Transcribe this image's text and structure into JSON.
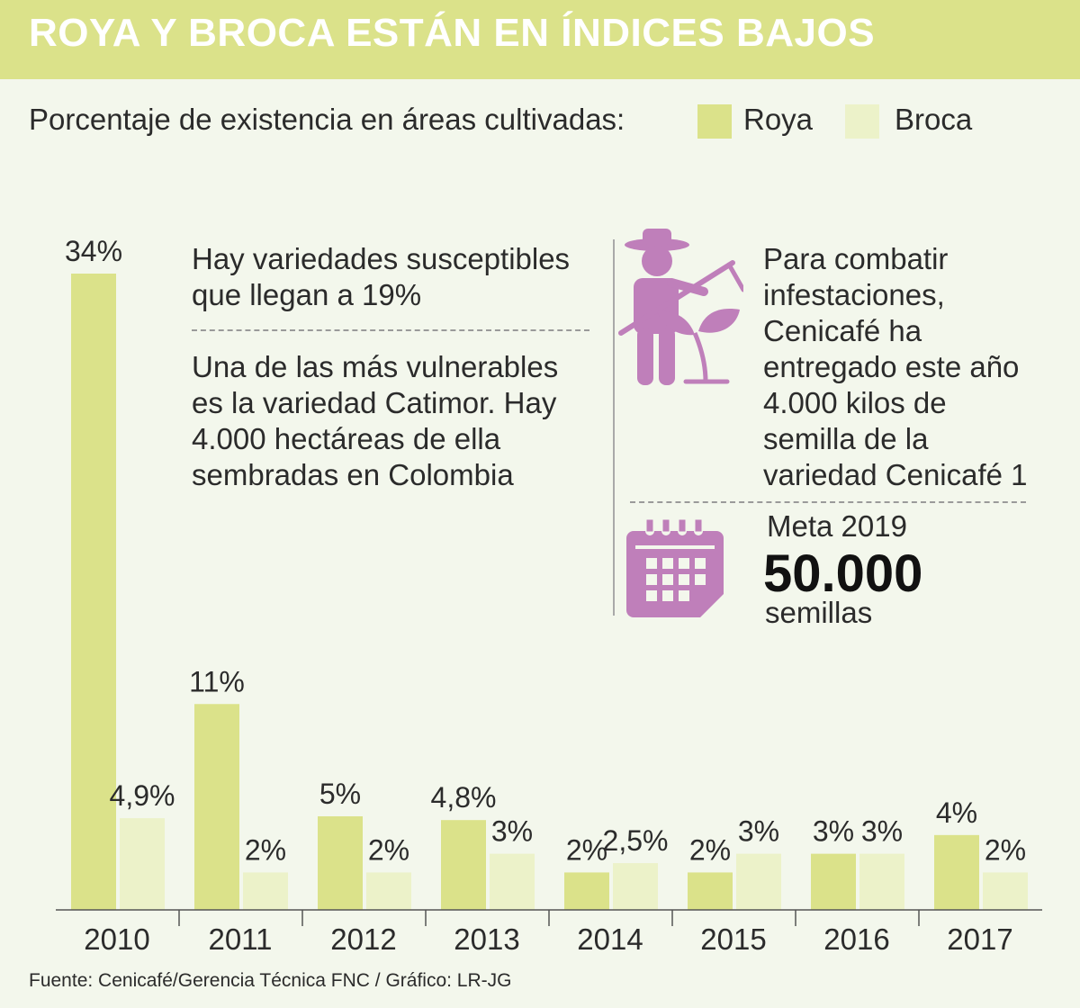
{
  "title": "ROYA Y BROCA ESTÁN EN ÍNDICES BAJOS",
  "subtitle": "Porcentaje de existencia en áreas cultivadas:",
  "colors": {
    "header": "#dbe28a",
    "roya": "#dbe28a",
    "broca": "#ecf2c9",
    "icon": "#bf7fba",
    "background": "#f3f7ec"
  },
  "notes": {
    "left_top": [
      "Hay variedades susceptibles",
      "que llegan a 19%"
    ],
    "left_bottom": [
      "Una de las más vulnerables",
      "es la variedad Catimor. Hay",
      "4.000 hectáreas de ella",
      "sembradas en Colombia"
    ],
    "right_top": [
      "Para combatir",
      "infestaciones,",
      "Cenicafé ha",
      "entregado este año",
      "4.000 kilos de",
      "semilla de la",
      "variedad Cenicafé 1"
    ]
  },
  "meta": {
    "label": "Meta 2019",
    "value": "50.000",
    "unit": "semillas"
  },
  "icons": [
    "farmer-icon",
    "calendar-icon"
  ],
  "source": "Fuente: Cenicafé/Gerencia Técnica FNC / Gráfico: LR-JG",
  "chart_data": {
    "type": "bar",
    "categories": [
      "2010",
      "2011",
      "2012",
      "2013",
      "2014",
      "2015",
      "2016",
      "2017"
    ],
    "series": [
      {
        "name": "Roya",
        "values": [
          34,
          11,
          5,
          4.8,
          2,
          2,
          3,
          4
        ],
        "labels": [
          "34%",
          "11%",
          "5%",
          "4,8%",
          "2%",
          "2%",
          "3%",
          "4%"
        ]
      },
      {
        "name": "Broca",
        "values": [
          4.9,
          2,
          2,
          3,
          2.5,
          3,
          3,
          2
        ],
        "labels": [
          "4,9%",
          "2%",
          "2%",
          "3%",
          "2,5%",
          "3%",
          "3%",
          "2%"
        ]
      }
    ],
    "ylim": [
      0,
      34
    ],
    "xlabel": "",
    "ylabel": "",
    "grid": false,
    "legend": "top"
  }
}
